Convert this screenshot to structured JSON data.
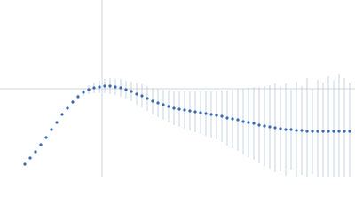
{
  "chart_data": {
    "type": "scatter",
    "x": [
      -87,
      -81,
      -75,
      -69,
      -63,
      -57,
      -51,
      -45,
      -39,
      -33,
      -27,
      -21,
      -15,
      -9,
      -3,
      3,
      9,
      15,
      21,
      27,
      33,
      39,
      45,
      51,
      57,
      63,
      69,
      75,
      81,
      87,
      93,
      99,
      105,
      111,
      117,
      123,
      129,
      135,
      141,
      147,
      153,
      159,
      165,
      171,
      177,
      183,
      189,
      195,
      201,
      207,
      213,
      219,
      225,
      231,
      237,
      243,
      249,
      255,
      261,
      267,
      273,
      279
    ],
    "values": [
      -85,
      -78,
      -71,
      -63,
      -55,
      -46,
      -38,
      -29,
      -22,
      -15,
      -9,
      -4,
      -1,
      1,
      2,
      3,
      3,
      2,
      1,
      -1,
      -3,
      -6,
      -8,
      -11,
      -14,
      -16,
      -18,
      -20,
      -22,
      -23,
      -24,
      -25,
      -26,
      -27,
      -28,
      -29,
      -30,
      -31,
      -33,
      -34,
      -35,
      -37,
      -38,
      -39,
      -41,
      -42,
      -43,
      -44,
      -45,
      -46,
      -46,
      -47,
      -47,
      -48,
      -48,
      -48,
      -48,
      -48,
      -48,
      -48,
      -48,
      -48
    ],
    "errors": [
      0,
      0,
      0,
      0,
      0,
      0,
      0,
      0,
      1,
      2,
      3,
      4,
      5,
      6,
      7,
      8,
      9,
      9,
      10,
      10,
      11,
      12,
      13,
      14,
      15,
      16,
      17,
      18,
      19,
      20,
      21,
      22,
      23,
      24,
      25,
      26,
      27,
      29,
      31,
      33,
      35,
      37,
      39,
      41,
      43,
      45,
      47,
      50,
      48,
      52,
      45,
      55,
      50,
      60,
      48,
      58,
      55,
      62,
      57,
      65,
      60,
      55
    ],
    "color": "#3a68b0",
    "error_color": "#b9c9dd",
    "axis_color": "#d0d4da",
    "xlim": [
      -115,
      285
    ],
    "ylim": [
      -100,
      100
    ],
    "axis_lines": true
  }
}
